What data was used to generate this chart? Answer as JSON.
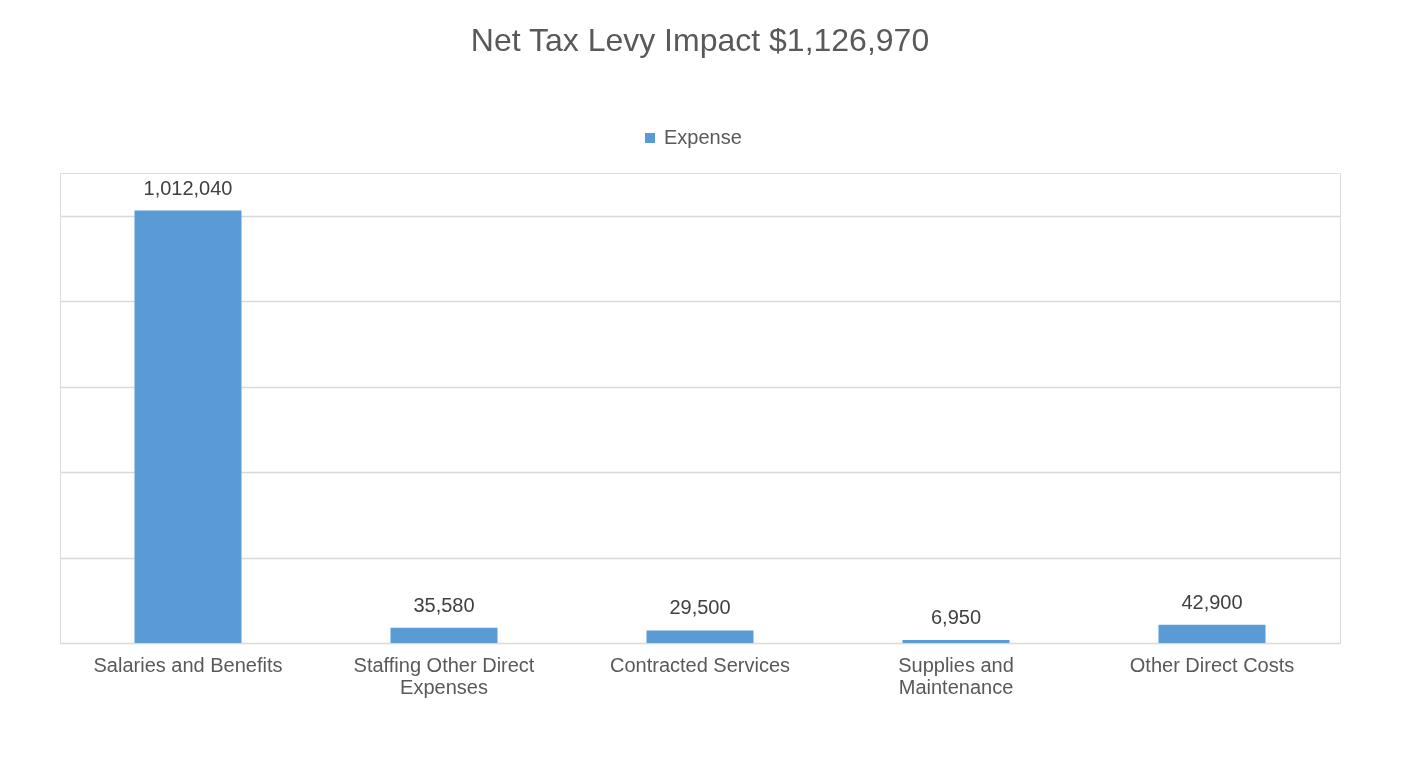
{
  "chart_data": {
    "type": "bar",
    "title": "Net Tax Levy Impact $1,126,970",
    "categories": [
      "Salaries and Benefits",
      "Staffing Other Direct Expenses",
      "Contracted Services",
      "Supplies and Maintenance",
      "Other Direct Costs"
    ],
    "series": [
      {
        "name": "Expense",
        "color": "#5b9bd5",
        "values": [
          1012040,
          35580,
          29500,
          6950,
          42900
        ],
        "value_labels": [
          "1,012,040",
          "35,580",
          "29,500",
          "6,950",
          "42,900"
        ]
      }
    ],
    "tick_labels": "x",
    "grid": "y",
    "legend": "top"
  }
}
